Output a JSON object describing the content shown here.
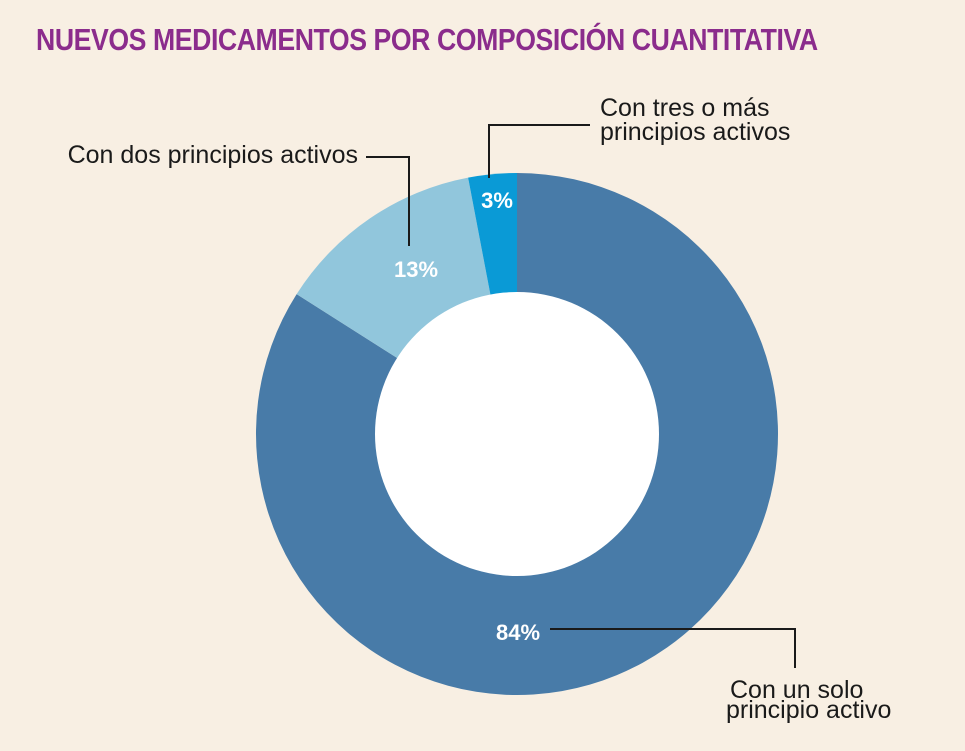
{
  "chart_data": {
    "type": "pie",
    "title": "NUEVOS MEDICAMENTOS POR COMPOSICIÓN CUANTITATIVA",
    "title_color": "#8b2c8c",
    "donut": true,
    "slices": [
      {
        "label": [
          "Con un solo",
          "principio activo"
        ],
        "value": 84,
        "value_label": "84%",
        "color": "#487ba8"
      },
      {
        "label": [
          "Con dos principios activos"
        ],
        "value": 13,
        "value_label": "13%",
        "color": "#91c6dc"
      },
      {
        "label": [
          "Con tres o más",
          "principios activos"
        ],
        "value": 3,
        "value_label": "3%",
        "color": "#0a9ad6"
      }
    ]
  }
}
